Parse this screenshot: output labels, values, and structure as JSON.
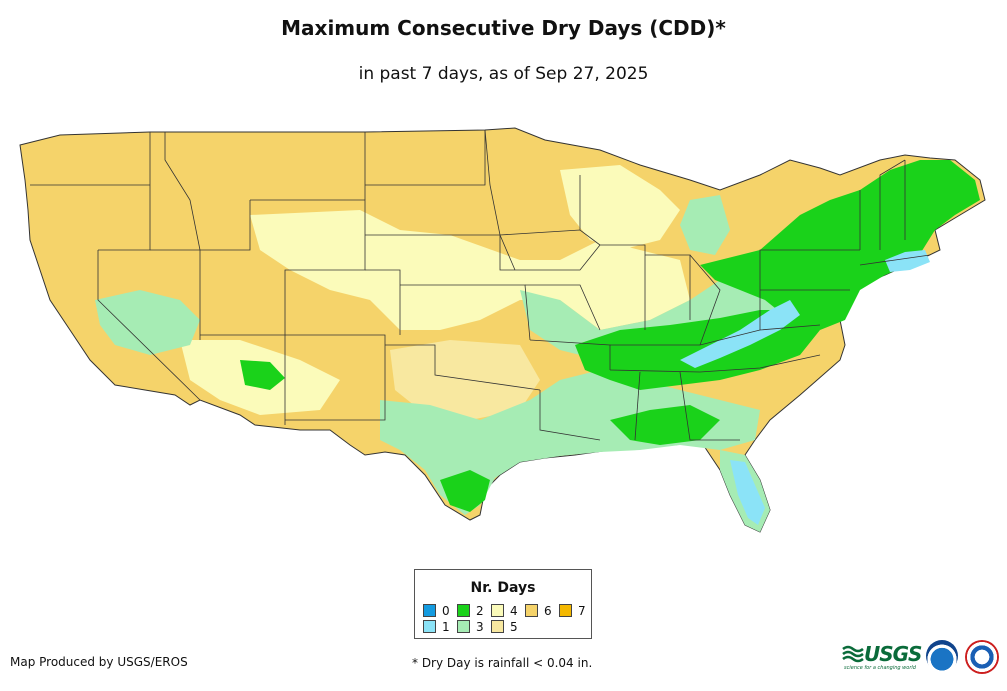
{
  "title": "Maximum Consecutive Dry Days (CDD)*",
  "subtitle": "in past 7 days, as of Sep 27, 2025",
  "legend": {
    "title": "Nr. Days",
    "items": [
      {
        "label": "0",
        "color": "#149be0"
      },
      {
        "label": "1",
        "color": "#8be3f7"
      },
      {
        "label": "2",
        "color": "#1ad21a"
      },
      {
        "label": "3",
        "color": "#a6ecb4"
      },
      {
        "label": "4",
        "color": "#fbfbba"
      },
      {
        "label": "5",
        "color": "#f8e8a0"
      },
      {
        "label": "6",
        "color": "#f5d36a"
      },
      {
        "label": "7",
        "color": "#f4b800"
      }
    ]
  },
  "footer": {
    "producer": "Map Produced by USGS/EROS",
    "note": "* Dry Day is rainfall < 0.04 in."
  },
  "logos": {
    "usgs": "USGS",
    "usgs_tagline": "science for a changing world",
    "noaa_icon": "noaa-logo-icon",
    "nws_icon": "nws-logo-icon"
  }
}
